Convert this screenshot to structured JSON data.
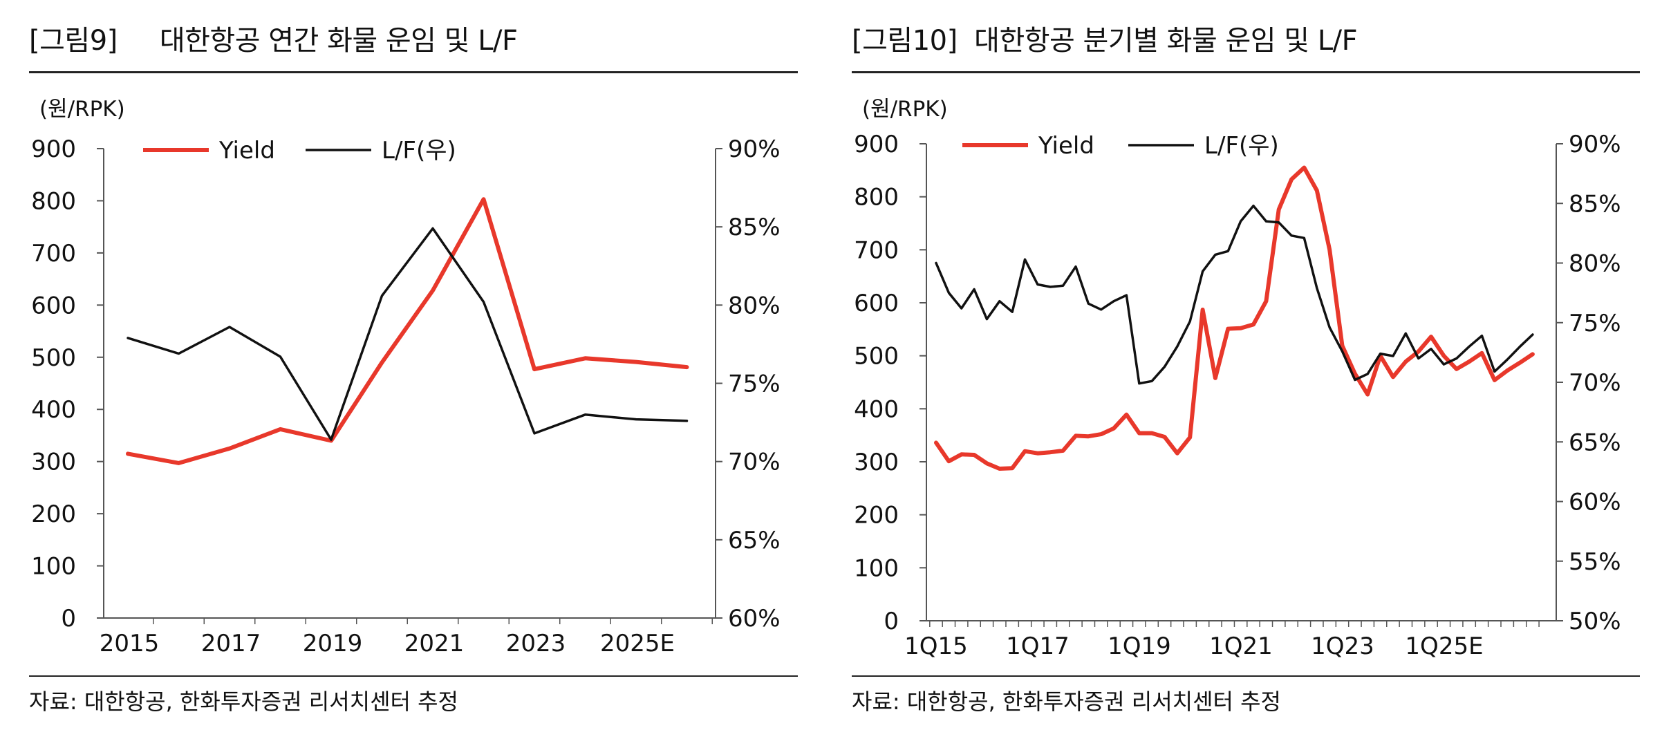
{
  "colors": {
    "yield": "#e8382b",
    "lf": "#111111",
    "axis": "#555555"
  },
  "chart_data": [
    {
      "type": "line",
      "title": "[그림9]     대한항공 연간 화물 운임 및 L/F",
      "unit_label": "(원/RPK)",
      "legend": [
        "Yield",
        "L/F(우)"
      ],
      "legend_position": "top-left",
      "ylim": [
        0,
        900
      ],
      "y_ticks": [
        "900",
        "800",
        "700",
        "600",
        "500",
        "400",
        "300",
        "200",
        "100",
        "0"
      ],
      "y2lim": [
        60,
        90
      ],
      "y2_ticks": [
        "90%",
        "85%",
        "80%",
        "75%",
        "70%",
        "65%",
        "60%"
      ],
      "x_labels": [
        "2015",
        "2017",
        "2019",
        "2021",
        "2023",
        "2025E"
      ],
      "n_points": 12,
      "series": [
        {
          "name": "Yield",
          "axis": "left",
          "values": [
            315,
            297,
            325,
            362,
            340,
            490,
            628,
            803,
            477,
            498,
            491,
            481
          ]
        },
        {
          "name": "L/F(우)",
          "axis": "right",
          "values": [
            77.9,
            76.9,
            78.6,
            76.7,
            71.4,
            80.6,
            84.9,
            80.2,
            71.8,
            73.0,
            72.7,
            72.6
          ]
        }
      ],
      "source": "자료: 대한항공, 한화투자증권 리서치센터 추정"
    },
    {
      "type": "line",
      "title": "[그림10]  대한항공 분기별 화물 운임 및 L/F",
      "unit_label": "(원/RPK)",
      "legend": [
        "Yield",
        "L/F(우)"
      ],
      "legend_position": "top-left",
      "ylim": [
        0,
        900
      ],
      "y_ticks": [
        "900",
        "800",
        "700",
        "600",
        "500",
        "400",
        "300",
        "200",
        "100",
        "0"
      ],
      "y2lim": [
        50,
        90
      ],
      "y2_ticks": [
        "90%",
        "85%",
        "80%",
        "75%",
        "70%",
        "65%",
        "60%",
        "55%",
        "50%"
      ],
      "x_labels": [
        "1Q15",
        "1Q17",
        "1Q19",
        "1Q21",
        "1Q23",
        "1Q25E"
      ],
      "n_points": 48,
      "series": [
        {
          "name": "Yield",
          "axis": "left",
          "values": [
            336,
            301,
            314,
            313,
            297,
            287,
            288,
            320,
            316,
            318,
            321,
            349,
            348,
            352,
            363,
            389,
            354,
            354,
            347,
            316,
            346,
            587,
            458,
            551,
            552,
            559,
            603,
            776,
            833,
            855,
            812,
            700,
            519,
            466,
            427,
            500,
            460,
            489,
            508,
            536,
            500,
            475,
            489,
            505,
            454,
            472,
            487,
            503
          ]
        },
        {
          "name": "L/F(우)",
          "axis": "right",
          "values": [
            80.0,
            77.5,
            76.2,
            77.8,
            75.3,
            76.8,
            75.9,
            80.3,
            78.2,
            78.0,
            78.1,
            79.7,
            76.6,
            76.1,
            76.8,
            77.3,
            69.9,
            70.1,
            71.3,
            73.0,
            75.1,
            79.3,
            80.7,
            81.0,
            83.5,
            84.8,
            83.5,
            83.4,
            82.3,
            82.1,
            77.9,
            74.6,
            72.6,
            70.2,
            70.7,
            72.4,
            72.2,
            74.1,
            72.0,
            72.8,
            71.5,
            72.0,
            73.0,
            73.9,
            70.9,
            71.9,
            73.0,
            74.0
          ]
        }
      ],
      "source": "자료: 대한항공, 한화투자증권 리서치센터 추정"
    }
  ]
}
